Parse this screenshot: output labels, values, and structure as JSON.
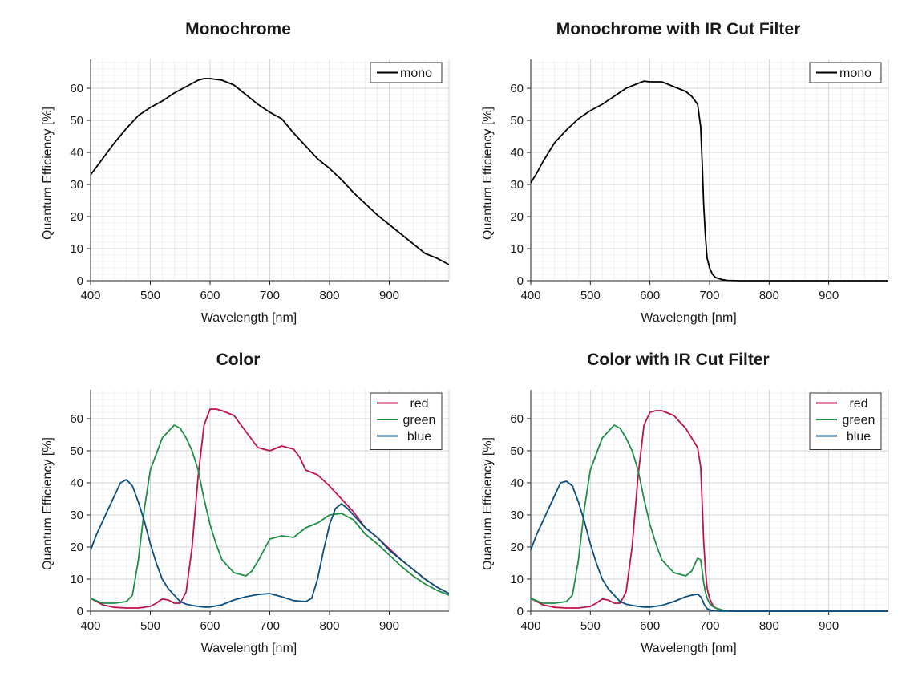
{
  "chart_data": [
    {
      "type": "line",
      "title": "Monochrome",
      "xlabel": "Wavelength [nm]",
      "ylabel": "Quantum Efficiency [%]",
      "xlim": [
        400,
        1000
      ],
      "ylim": [
        0,
        69
      ],
      "xticks": [
        400,
        500,
        600,
        700,
        800,
        900
      ],
      "yticks": [
        0,
        10,
        20,
        30,
        40,
        50,
        60
      ],
      "legend": "top-right",
      "grid": true,
      "series": [
        {
          "name": "mono",
          "color": "#000000",
          "x": [
            400,
            420,
            440,
            460,
            480,
            500,
            520,
            540,
            560,
            580,
            590,
            600,
            620,
            640,
            660,
            680,
            700,
            720,
            740,
            760,
            780,
            800,
            820,
            840,
            860,
            880,
            900,
            920,
            940,
            960,
            980,
            1000
          ],
          "y": [
            33,
            38,
            43,
            47.5,
            51.5,
            54,
            56,
            58.5,
            60.5,
            62.5,
            63,
            63,
            62.5,
            61,
            58,
            55,
            52.5,
            50.5,
            46,
            42,
            38,
            35,
            31.5,
            27.5,
            24,
            20.5,
            17.5,
            14.5,
            11.5,
            8.5,
            7,
            5
          ]
        }
      ]
    },
    {
      "type": "line",
      "title": "Monochrome with IR Cut Filter",
      "xlabel": "Wavelength [nm]",
      "ylabel": "Quantum Efficiency [%]",
      "xlim": [
        400,
        1000
      ],
      "ylim": [
        0,
        69
      ],
      "xticks": [
        400,
        500,
        600,
        700,
        800,
        900
      ],
      "yticks": [
        0,
        10,
        20,
        30,
        40,
        50,
        60
      ],
      "legend": "top-right",
      "grid": true,
      "series": [
        {
          "name": "mono",
          "color": "#000000",
          "x": [
            400,
            410,
            420,
            430,
            440,
            460,
            480,
            500,
            520,
            540,
            560,
            580,
            590,
            600,
            620,
            640,
            660,
            670,
            680,
            685,
            688,
            690,
            693,
            696,
            700,
            705,
            710,
            720,
            730,
            750,
            800,
            900,
            1000
          ],
          "y": [
            30.5,
            33.5,
            37,
            40,
            43,
            47,
            50.5,
            53,
            55,
            57.5,
            60,
            61.5,
            62.2,
            62,
            62,
            60.5,
            59,
            57.5,
            55,
            48,
            35,
            24,
            14,
            7,
            4,
            2,
            1,
            0.4,
            0.1,
            0,
            0,
            0,
            0
          ]
        }
      ]
    },
    {
      "type": "line",
      "title": "Color",
      "xlabel": "Wavelength [nm]",
      "ylabel": "Quantum Efficiency [%]",
      "xlim": [
        400,
        1000
      ],
      "ylim": [
        0,
        69
      ],
      "xticks": [
        400,
        500,
        600,
        700,
        800,
        900
      ],
      "yticks": [
        0,
        10,
        20,
        30,
        40,
        50,
        60
      ],
      "legend": "top-right",
      "grid": true,
      "series": [
        {
          "name": "red",
          "color": "#c0134a",
          "x": [
            400,
            420,
            440,
            460,
            480,
            500,
            510,
            520,
            530,
            540,
            550,
            560,
            570,
            580,
            590,
            600,
            610,
            620,
            640,
            660,
            680,
            700,
            720,
            740,
            750,
            760,
            780,
            800,
            820,
            840,
            860,
            880,
            900,
            920,
            940,
            960,
            980,
            1000
          ],
          "y": [
            4,
            2,
            1.2,
            1,
            1,
            1.5,
            2.5,
            3.8,
            3.5,
            2.5,
            2.5,
            6,
            20,
            42,
            58,
            63,
            63,
            62.5,
            61,
            56,
            51,
            50,
            51.5,
            50.5,
            48,
            44,
            42.5,
            39,
            35,
            31,
            26,
            23,
            19.5,
            16,
            13,
            10,
            7.5,
            5.5
          ]
        },
        {
          "name": "green",
          "color": "#1e8f45",
          "x": [
            400,
            420,
            440,
            460,
            470,
            480,
            490,
            500,
            520,
            540,
            550,
            560,
            570,
            580,
            590,
            600,
            610,
            620,
            640,
            660,
            670,
            680,
            690,
            700,
            720,
            740,
            760,
            780,
            800,
            820,
            840,
            860,
            880,
            900,
            920,
            940,
            960,
            980,
            1000
          ],
          "y": [
            4,
            2.5,
            2.5,
            3,
            5,
            16,
            32,
            44,
            54,
            58,
            57,
            54,
            50,
            44,
            35,
            27,
            21,
            16,
            12,
            11,
            12.5,
            15.5,
            19,
            22.5,
            23.5,
            23,
            26,
            27.5,
            30,
            30.5,
            28.5,
            24,
            21,
            17.5,
            14,
            11,
            8.5,
            6.5,
            5
          ]
        },
        {
          "name": "blue",
          "color": "#0b4f80",
          "x": [
            400,
            410,
            420,
            430,
            440,
            450,
            460,
            470,
            480,
            490,
            500,
            510,
            520,
            530,
            540,
            550,
            560,
            570,
            580,
            590,
            600,
            620,
            640,
            660,
            680,
            700,
            720,
            740,
            760,
            770,
            780,
            790,
            800,
            810,
            820,
            830,
            840,
            860,
            880,
            900,
            920,
            940,
            960,
            980,
            1000
          ],
          "y": [
            19,
            24,
            28,
            32,
            36,
            40,
            41,
            39,
            34,
            28,
            21,
            15,
            10,
            7,
            5,
            3,
            2.2,
            1.8,
            1.5,
            1.3,
            1.3,
            2,
            3.5,
            4.5,
            5.2,
            5.5,
            4.5,
            3.3,
            3,
            4,
            10,
            19,
            27,
            32,
            33.5,
            32,
            30,
            26,
            23,
            19,
            16,
            13,
            10,
            7.5,
            5.5
          ]
        }
      ]
    },
    {
      "type": "line",
      "title": "Color with IR Cut Filter",
      "xlabel": "Wavelength [nm]",
      "ylabel": "Quantum Efficiency [%]",
      "xlim": [
        400,
        1000
      ],
      "ylim": [
        0,
        69
      ],
      "xticks": [
        400,
        500,
        600,
        700,
        800,
        900
      ],
      "yticks": [
        0,
        10,
        20,
        30,
        40,
        50,
        60
      ],
      "legend": "top-right",
      "grid": true,
      "series": [
        {
          "name": "red",
          "color": "#c0134a",
          "x": [
            400,
            420,
            440,
            460,
            480,
            500,
            510,
            520,
            530,
            540,
            550,
            560,
            570,
            580,
            590,
            600,
            610,
            620,
            640,
            660,
            670,
            680,
            685,
            688,
            690,
            693,
            696,
            700,
            705,
            710,
            720,
            730,
            750,
            800,
            900,
            1000
          ],
          "y": [
            4,
            2,
            1.2,
            1,
            1,
            1.5,
            2.5,
            3.8,
            3.5,
            2.5,
            2.5,
            6,
            20,
            42,
            58,
            62,
            62.5,
            62.5,
            61,
            57,
            54,
            51,
            45,
            32,
            22,
            13,
            7,
            4,
            2,
            1,
            0.4,
            0.1,
            0,
            0,
            0,
            0
          ]
        },
        {
          "name": "green",
          "color": "#1e8f45",
          "x": [
            400,
            420,
            440,
            460,
            470,
            480,
            490,
            500,
            520,
            540,
            550,
            560,
            570,
            580,
            590,
            600,
            610,
            620,
            640,
            660,
            670,
            680,
            685,
            688,
            690,
            693,
            696,
            700,
            705,
            710,
            720,
            730,
            750,
            800,
            900,
            1000
          ],
          "y": [
            4,
            2.5,
            2.5,
            3,
            5,
            16,
            32,
            44,
            54,
            58,
            57,
            54,
            50,
            44,
            35,
            27,
            21,
            16,
            12,
            11,
            12.5,
            16.5,
            16,
            12,
            9,
            6,
            4,
            2.5,
            1.5,
            1,
            0.4,
            0.1,
            0,
            0,
            0,
            0
          ]
        },
        {
          "name": "blue",
          "color": "#0b4f80",
          "x": [
            400,
            410,
            420,
            430,
            440,
            450,
            460,
            470,
            480,
            490,
            500,
            510,
            520,
            530,
            540,
            550,
            560,
            570,
            580,
            590,
            600,
            620,
            640,
            660,
            670,
            680,
            685,
            688,
            690,
            693,
            696,
            700,
            710,
            720,
            750,
            800,
            900,
            1000
          ],
          "y": [
            19,
            24,
            28,
            32,
            36,
            40,
            40.5,
            39,
            34,
            28,
            21,
            15,
            10,
            7,
            5,
            3,
            2.2,
            1.8,
            1.5,
            1.3,
            1.3,
            1.8,
            3,
            4.5,
            5,
            5.3,
            4.5,
            3.5,
            2.5,
            1.5,
            0.8,
            0.4,
            0.1,
            0,
            0,
            0,
            0,
            0
          ]
        }
      ]
    }
  ]
}
